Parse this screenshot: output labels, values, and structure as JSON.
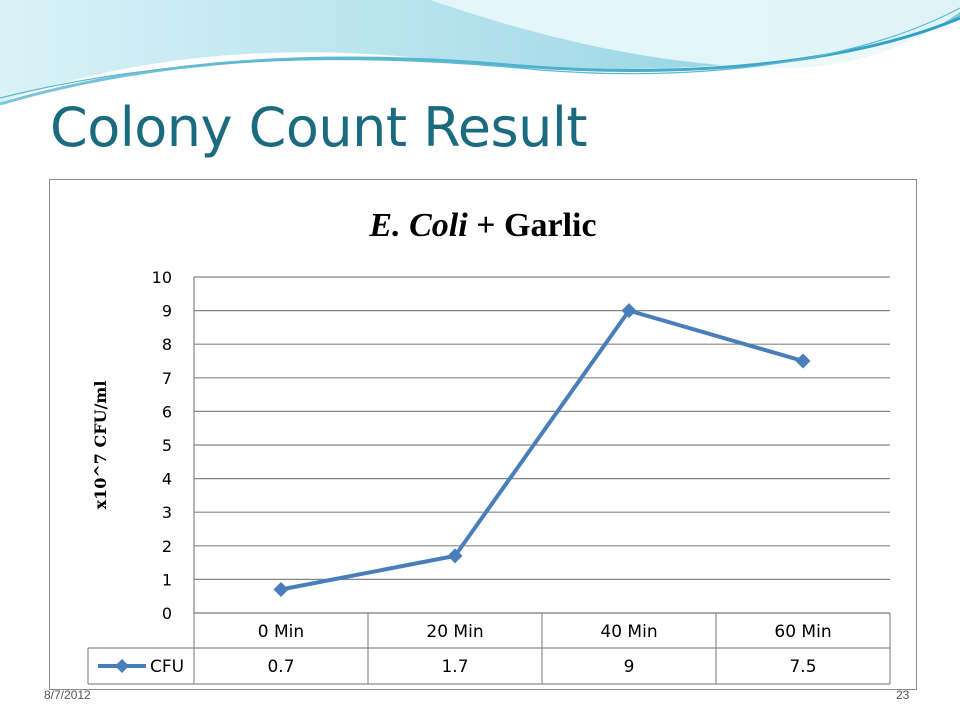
{
  "slide": {
    "title": "Colony Count Result",
    "date": "8/7/2012",
    "page_number": "23"
  },
  "colors": {
    "title": "#1a6b80",
    "series": "#4a7ebb",
    "gridline": "#868686",
    "wave_light": "#bfe8f0",
    "wave_dark": "#3fa9c9"
  },
  "chart_data": {
    "type": "line",
    "title_italic": "E. Coli",
    "title_rest": " + Garlic",
    "ylabel": "x10^7 CFU/ml",
    "xlabel": "",
    "categories": [
      "0 Min",
      "20 Min",
      "40 Min",
      "60 Min"
    ],
    "ylim": [
      0,
      10
    ],
    "yticks": [
      0,
      1,
      2,
      3,
      4,
      5,
      6,
      7,
      8,
      9,
      10
    ],
    "grid": true,
    "data_table": true,
    "series": [
      {
        "name": "CFU",
        "values": [
          0.7,
          1.7,
          9,
          7.5
        ],
        "table_labels": [
          "0.7",
          "1.7",
          "9",
          "7.5"
        ],
        "marker": "diamond"
      }
    ]
  }
}
